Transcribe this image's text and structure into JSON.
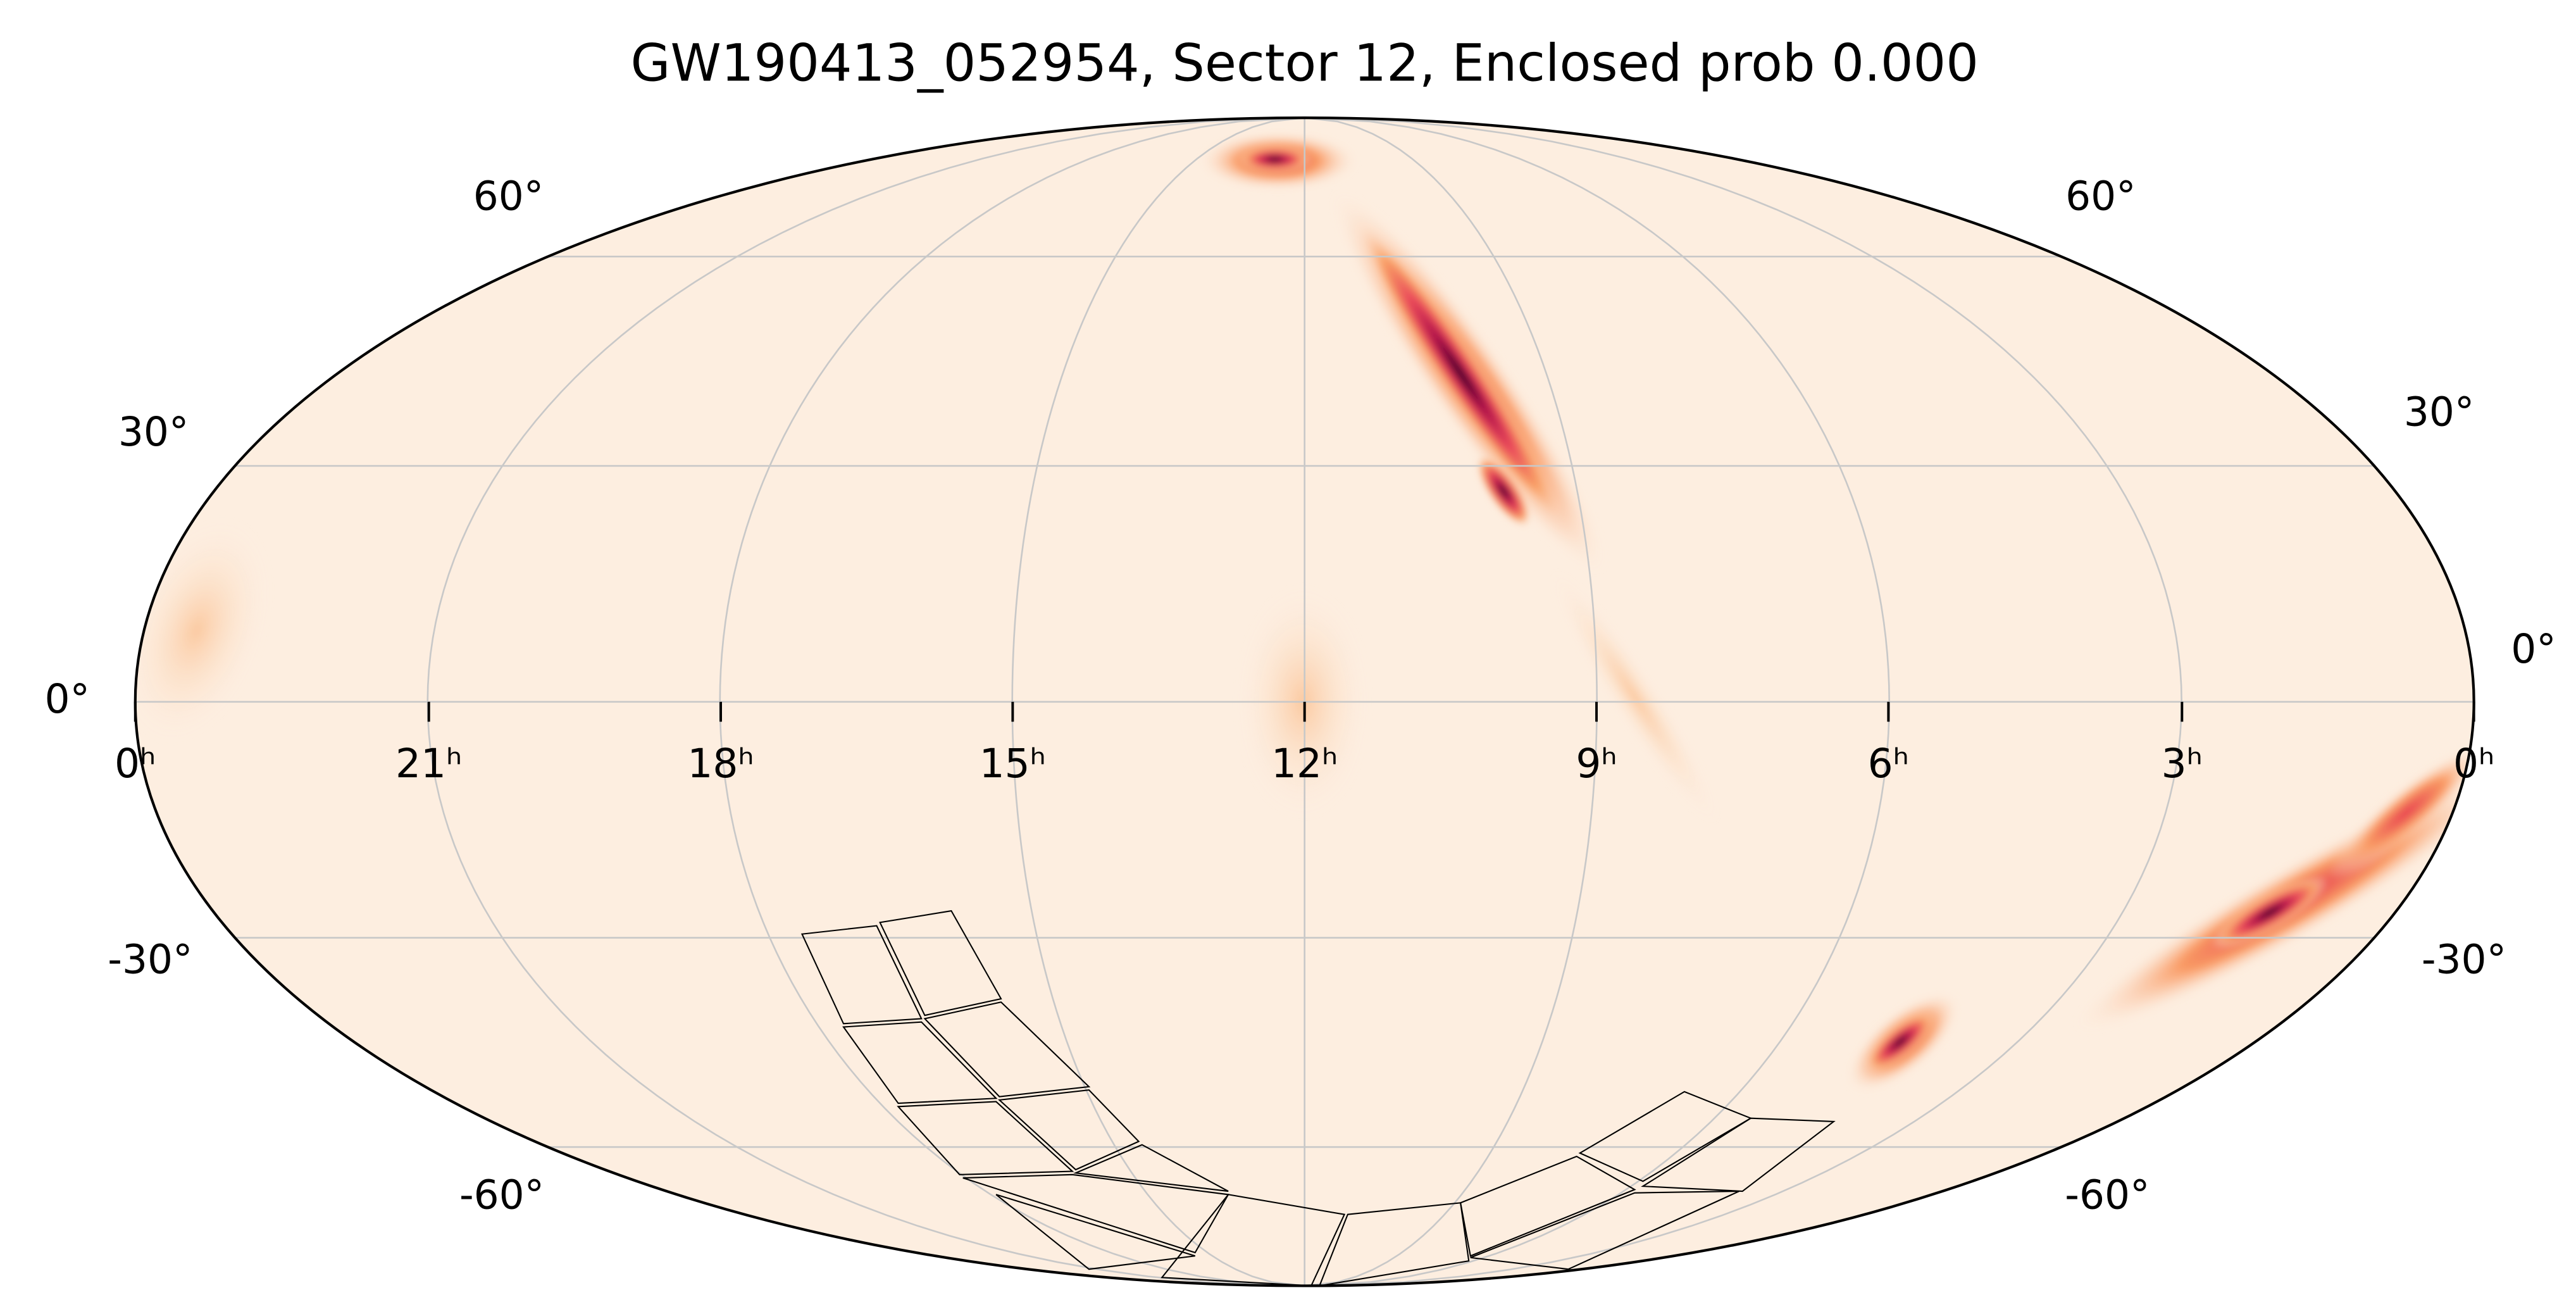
{
  "title": "GW190413_052954, Sector 12, Enclosed prob 0.000",
  "ra_labels": [
    "0ʰ",
    "21ʰ",
    "18ʰ",
    "15ʰ",
    "12ʰ",
    "9ʰ",
    "6ʰ",
    "3ʰ",
    "0ʰ"
  ],
  "dec_labels_left": [
    "60°",
    "30°",
    "0°",
    "-30°",
    "-60°"
  ],
  "dec_labels_right": [
    "60°",
    "30°",
    "0°",
    "-30°",
    "-60°"
  ]
}
